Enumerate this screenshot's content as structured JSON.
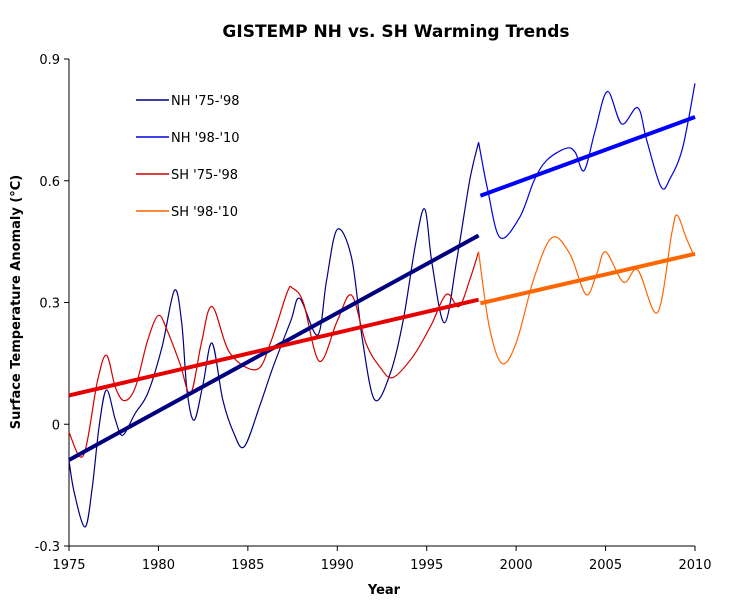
{
  "chart_data": {
    "type": "line",
    "title": "GISTEMP NH vs. SH Warming Trends",
    "xlabel": "Year",
    "ylabel": "Surface Temperature Anomaly (°C)",
    "xlim": [
      1975,
      2010
    ],
    "ylim": [
      -0.3,
      0.9
    ],
    "x_ticks": [
      1975,
      1980,
      1985,
      1990,
      1995,
      2000,
      2005,
      2010
    ],
    "x_tick_labels": [
      "1975",
      "1980",
      "1985",
      "1990",
      "1995",
      "2000",
      "2005",
      "2010"
    ],
    "y_ticks": [
      -0.3,
      0,
      0.3,
      0.6,
      0.9
    ],
    "y_tick_labels": [
      "-0.3",
      "0",
      "0.3",
      "0.6",
      "0.9"
    ],
    "grid": false,
    "legend_position": "top-left",
    "legend": [
      {
        "label": "NH '75-'98",
        "color": "#000080"
      },
      {
        "label": "NH '98-'10",
        "color": "#0000E0"
      },
      {
        "label": "SH '75-'98",
        "color": "#D40000"
      },
      {
        "label": "SH '98-'10",
        "color": "#FF6600"
      }
    ],
    "series": [
      {
        "name": "NH '75-'98",
        "color": "#000080",
        "x": [
          1975.0,
          1975.3,
          1975.9,
          1976.3,
          1976.7,
          1977.1,
          1977.6,
          1978.0,
          1978.7,
          1979.4,
          1980.2,
          1980.9,
          1981.3,
          1981.6,
          1982.0,
          1982.5,
          1983.0,
          1983.6,
          1984.2,
          1984.8,
          1985.7,
          1986.4,
          1987.4,
          1987.9,
          1988.9,
          1989.4,
          1990.0,
          1990.8,
          1991.4,
          1992.1,
          1993.0,
          1993.7,
          1994.4,
          1994.9,
          1995.3,
          1996.0,
          1996.7,
          1997.4,
          1997.9
        ],
        "y": [
          -0.09,
          -0.17,
          -0.253,
          -0.155,
          0.0,
          0.085,
          0.01,
          -0.027,
          0.027,
          0.076,
          0.19,
          0.33,
          0.25,
          0.083,
          0.01,
          0.1,
          0.2,
          0.06,
          -0.02,
          -0.055,
          0.05,
          0.14,
          0.255,
          0.31,
          0.22,
          0.355,
          0.48,
          0.41,
          0.21,
          0.06,
          0.13,
          0.26,
          0.45,
          0.53,
          0.395,
          0.25,
          0.41,
          0.6,
          0.695
        ]
      },
      {
        "name": "NH '98-'10",
        "color": "#0000E0",
        "x": [
          1997.9,
          1998.4,
          1999.1,
          2000.2,
          2001.0,
          2001.7,
          2002.8,
          2003.3,
          2003.8,
          2004.4,
          2005.1,
          2005.9,
          2006.8,
          2007.3,
          2008.1,
          2008.6,
          2009.3,
          2010.0
        ],
        "y": [
          0.695,
          0.58,
          0.46,
          0.51,
          0.6,
          0.65,
          0.68,
          0.67,
          0.625,
          0.72,
          0.82,
          0.74,
          0.78,
          0.7,
          0.585,
          0.605,
          0.68,
          0.84
        ]
      },
      {
        "name": "SH '75-'98",
        "color": "#D40000",
        "x": [
          1975.0,
          1975.8,
          1976.6,
          1977.1,
          1977.6,
          1978.1,
          1978.7,
          1979.4,
          1980.0,
          1980.5,
          1981.2,
          1981.8,
          1982.4,
          1983.0,
          1984.0,
          1985.5,
          1986.3,
          1987.2,
          1987.5,
          1988.1,
          1989.0,
          1990.0,
          1990.8,
          1991.6,
          1992.4,
          1993.1,
          1994.2,
          1995.2,
          1996.1,
          1996.8,
          1997.4,
          1997.9
        ],
        "y": [
          -0.02,
          -0.077,
          0.108,
          0.17,
          0.09,
          0.058,
          0.09,
          0.207,
          0.268,
          0.23,
          0.15,
          0.076,
          0.2,
          0.29,
          0.175,
          0.135,
          0.205,
          0.325,
          0.335,
          0.3,
          0.155,
          0.255,
          0.318,
          0.2,
          0.14,
          0.115,
          0.165,
          0.24,
          0.32,
          0.29,
          0.355,
          0.425
        ]
      },
      {
        "name": "SH '98-'10",
        "color": "#FF6600",
        "x": [
          1997.9,
          1998.5,
          1999.2,
          2000.0,
          2001.0,
          2002.0,
          2003.0,
          2003.9,
          2004.5,
          2005.0,
          2006.0,
          2006.8,
          2007.9,
          2008.7,
          2009.0,
          2009.5,
          2009.9
        ],
        "y": [
          0.425,
          0.24,
          0.15,
          0.2,
          0.36,
          0.46,
          0.42,
          0.32,
          0.37,
          0.425,
          0.35,
          0.38,
          0.275,
          0.47,
          0.515,
          0.46,
          0.42
        ]
      }
    ],
    "trend_lines": [
      {
        "name": "NH '75-'98 trend",
        "color": "#000080",
        "x": [
          1975,
          1997.9
        ],
        "y": [
          -0.088,
          0.465
        ]
      },
      {
        "name": "NH '98-'10 trend",
        "color": "#0000FF",
        "x": [
          1998,
          2010
        ],
        "y": [
          0.563,
          0.757
        ]
      },
      {
        "name": "SH '75-'98 trend",
        "color": "#E60000",
        "x": [
          1975,
          1997.9
        ],
        "y": [
          0.071,
          0.307
        ]
      },
      {
        "name": "SH '98-'10 trend",
        "color": "#FF6600",
        "x": [
          1998,
          2010
        ],
        "y": [
          0.298,
          0.42
        ]
      }
    ]
  }
}
